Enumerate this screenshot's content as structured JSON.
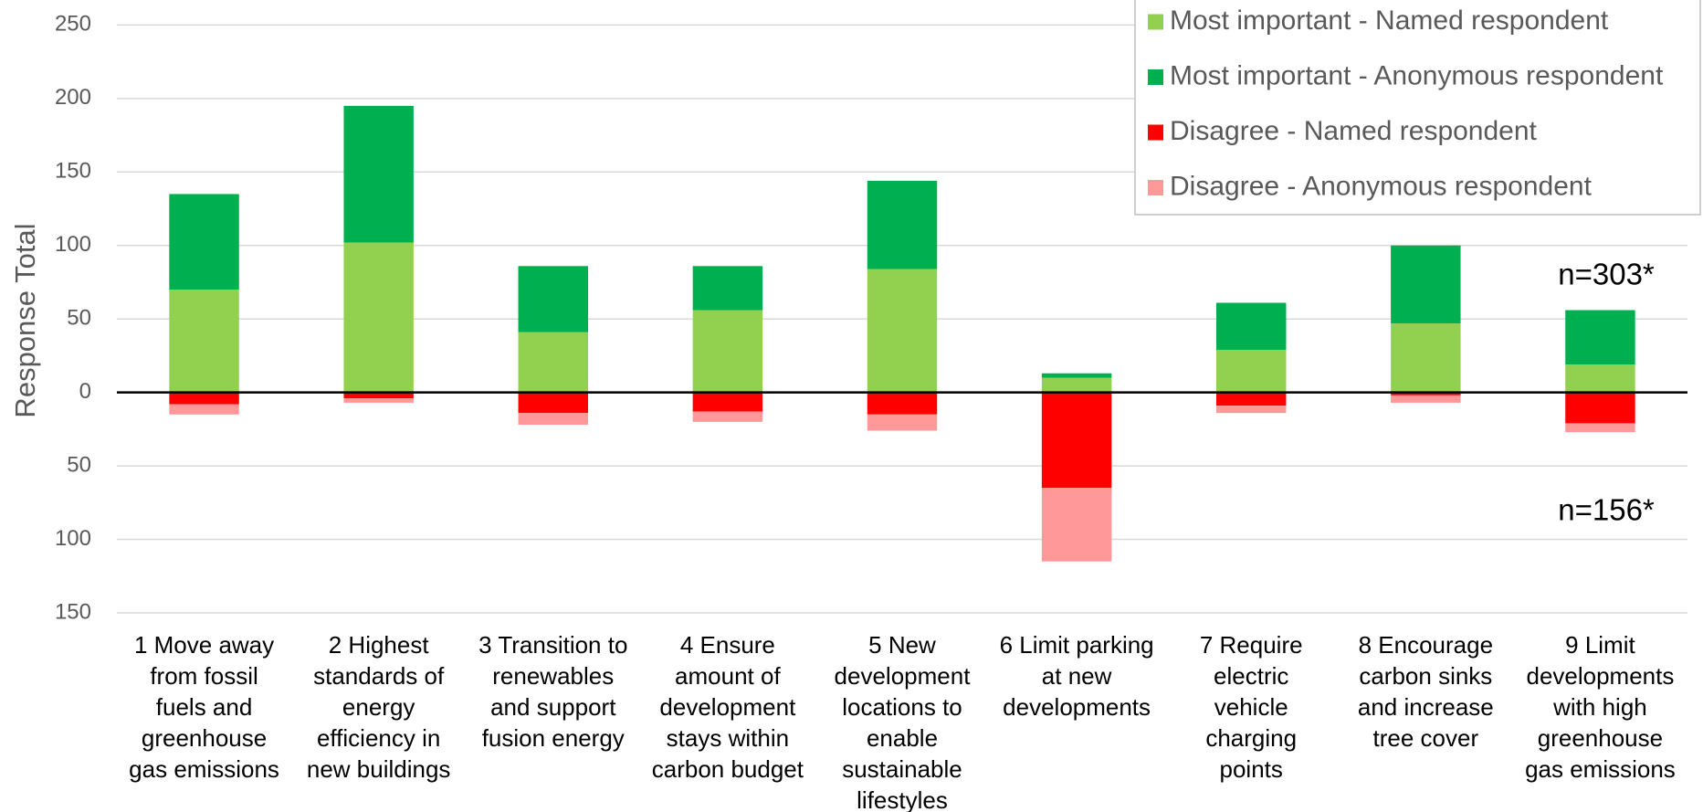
{
  "chart_data": {
    "type": "bar",
    "stacked": true,
    "y_axis_label": "Response Total",
    "categories": [
      "1 Move away\nfrom fossil\nfuels and\ngreenhouse\ngas emissions",
      "2 Highest\nstandards of\nenergy\nefficiency in\nnew buildings",
      "3 Transition to\nrenewables\nand support\nfusion energy",
      "4 Ensure\namount of\ndevelopment\nstays within\ncarbon budget",
      "5 New\ndevelopment\nlocations to\nenable\nsustainable\nlifestyles",
      "6 Limit parking\nat new\ndevelopments",
      "7 Require\nelectric\nvehicle\ncharging\npoints",
      "8 Encourage\ncarbon sinks\nand increase\ntree cover",
      "9 Limit\ndevelopments\nwith high\ngreenhouse\ngas emissions"
    ],
    "series": [
      {
        "name": "Most important - Named respondent",
        "color": "#92d050",
        "values": [
          70,
          102,
          41,
          56,
          84,
          10,
          29,
          47,
          19
        ]
      },
      {
        "name": "Most important - Anonymous respondent",
        "color": "#00b050",
        "values": [
          65,
          93,
          45,
          30,
          60,
          3,
          32,
          53,
          37
        ]
      },
      {
        "name": "Disagree - Named respondent",
        "color": "#ff0000",
        "values": [
          -8,
          -4,
          -14,
          -13,
          -15,
          -65,
          -9,
          -2,
          -21
        ]
      },
      {
        "name": "Disagree - Anonymous respondent",
        "color": "#ff9999",
        "values": [
          -7,
          -3,
          -8,
          -7,
          -11,
          -50,
          -5,
          -5,
          -6
        ]
      }
    ],
    "ylim": [
      -150,
      250
    ],
    "yticks": [
      {
        "value": -150,
        "label": "150"
      },
      {
        "value": -100,
        "label": "100"
      },
      {
        "value": -50,
        "label": "50"
      },
      0,
      50,
      100,
      150,
      200,
      250
    ],
    "grid": true,
    "legend_position": "top-right",
    "annotations": [
      "n=303*",
      "n=156*"
    ]
  }
}
